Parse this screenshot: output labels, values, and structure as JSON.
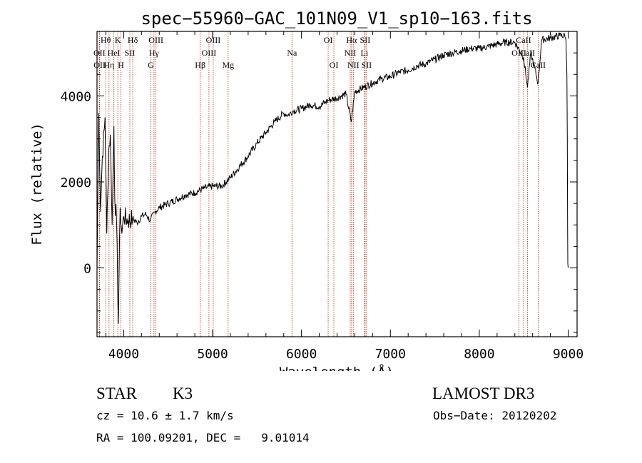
{
  "chart_data": {
    "type": "line",
    "title": "spec−55960−GAC_101N09_V1_sp10−163.fits",
    "xlabel": "Wavelength (Å)",
    "ylabel": "Flux (relative)",
    "xlim": [
      3700,
      9100
    ],
    "ylim": [
      -1600,
      5500
    ],
    "x_ticks": [
      4000,
      5000,
      6000,
      7000,
      8000,
      9000
    ],
    "x_tick_labels": [
      "4000",
      "5000",
      "6000",
      "7000",
      "8000",
      "9000"
    ],
    "y_ticks": [
      0,
      2000,
      4000
    ],
    "y_tick_labels": [
      "0",
      "2000",
      "4000"
    ],
    "series": [
      {
        "name": "flux",
        "x": [
          3700,
          3720,
          3740,
          3760,
          3790,
          3810,
          3830,
          3850,
          3870,
          3890,
          3900,
          3920,
          3940,
          3960,
          3980,
          4000,
          4050,
          4100,
          4150,
          4200,
          4250,
          4300,
          4350,
          4400,
          4500,
          4600,
          4700,
          4800,
          4900,
          5000,
          5100,
          5200,
          5300,
          5400,
          5500,
          5600,
          5700,
          5800,
          5850,
          5900,
          6000,
          6100,
          6200,
          6300,
          6400,
          6500,
          6560,
          6600,
          6700,
          6800,
          6900,
          7000,
          7100,
          7200,
          7300,
          7400,
          7500,
          7600,
          7700,
          7800,
          7900,
          8000,
          8100,
          8200,
          8300,
          8400,
          8498,
          8542,
          8580,
          8662,
          8700,
          8800,
          8900,
          8960,
          8975,
          8985,
          8990,
          8993,
          8996,
          9000
        ],
        "y": [
          0,
          3600,
          1300,
          2600,
          3500,
          800,
          2700,
          3100,
          1000,
          3300,
          1600,
          1100,
          -1300,
          1400,
          800,
          1200,
          1100,
          1150,
          1050,
          1200,
          1250,
          1100,
          1300,
          1400,
          1500,
          1600,
          1700,
          1750,
          1850,
          1900,
          1900,
          2100,
          2350,
          2600,
          2900,
          3150,
          3400,
          3600,
          3550,
          3650,
          3700,
          3800,
          3750,
          3900,
          3950,
          4050,
          3400,
          4100,
          4200,
          4300,
          4400,
          4450,
          4550,
          4600,
          4700,
          4750,
          4850,
          4950,
          5000,
          5050,
          5100,
          5100,
          5150,
          5200,
          5250,
          5250,
          4900,
          4200,
          5000,
          4300,
          5300,
          5350,
          5400,
          5400,
          5300,
          4500,
          3000,
          1000,
          100,
          0
        ]
      }
    ],
    "line_markers": [
      {
        "name": "Hθ",
        "wavelength": 3798,
        "row": 0
      },
      {
        "name": "OII",
        "wavelength": 3727,
        "row": 1
      },
      {
        "name": "OII",
        "wavelength": 3729,
        "row": 2
      },
      {
        "name": "Hη",
        "wavelength": 3835,
        "row": 2
      },
      {
        "name": "HeI",
        "wavelength": 3889,
        "row": 1
      },
      {
        "name": "K",
        "wavelength": 3934,
        "row": 0
      },
      {
        "name": "H",
        "wavelength": 3969,
        "row": 2
      },
      {
        "name": "SII",
        "wavelength": 4069,
        "row": 1
      },
      {
        "name": "Hδ",
        "wavelength": 4102,
        "row": 0
      },
      {
        "name": "OIII",
        "wavelength": 4363,
        "row": 0
      },
      {
        "name": "Hγ",
        "wavelength": 4341,
        "row": 1
      },
      {
        "name": "G",
        "wavelength": 4305,
        "row": 2
      },
      {
        "name": "Hβ",
        "wavelength": 4861,
        "row": 2
      },
      {
        "name": "OIII",
        "wavelength": 5007,
        "row": 0
      },
      {
        "name": "OIII",
        "wavelength": 4959,
        "row": 1
      },
      {
        "name": "Mg",
        "wavelength": 5175,
        "row": 2
      },
      {
        "name": "Na",
        "wavelength": 5893,
        "row": 1
      },
      {
        "name": "OI",
        "wavelength": 6300,
        "row": 0
      },
      {
        "name": "OI",
        "wavelength": 6364,
        "row": 2
      },
      {
        "name": "Hα",
        "wavelength": 6563,
        "row": 0
      },
      {
        "name": "NII",
        "wavelength": 6548,
        "row": 1
      },
      {
        "name": "NII",
        "wavelength": 6583,
        "row": 2
      },
      {
        "name": "SII",
        "wavelength": 6716,
        "row": 0
      },
      {
        "name": "Li",
        "wavelength": 6708,
        "row": 1
      },
      {
        "name": "SII",
        "wavelength": 6731,
        "row": 2
      },
      {
        "name": "CaII",
        "wavelength": 8498,
        "row": 0
      },
      {
        "name": "OIII",
        "wavelength": 8446,
        "row": 1
      },
      {
        "name": "CaII",
        "wavelength": 8542,
        "row": 1
      },
      {
        "name": "CaII",
        "wavelength": 8662,
        "row": 2
      }
    ]
  },
  "info": {
    "object_class": "STAR",
    "subclass": "K3",
    "survey": "LAMOST DR3",
    "redshift": "cz = 10.6 ± 1.7 km/s",
    "obs_date": "Obs−Date: 20120202",
    "coords": "RA = 100.09201, DEC =   9.01014"
  },
  "colors": {
    "line_marker": "#cc2200",
    "spectrum": "#000000",
    "axis": "#000000"
  }
}
